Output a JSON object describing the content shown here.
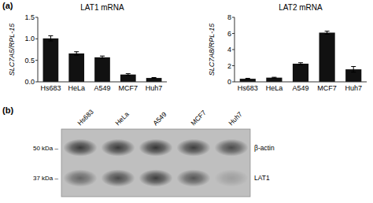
{
  "chart_data": [
    {
      "type": "bar",
      "title": "LAT1 mRNA",
      "annotations": [
        "(a)"
      ],
      "ylabel": "SLC7A5/RPL-15",
      "categories": [
        "Hs683",
        "HeLa",
        "A549",
        "MCF7",
        "Huh7"
      ],
      "values": [
        1.01,
        0.66,
        0.57,
        0.17,
        0.09
      ],
      "errors": [
        0.06,
        0.04,
        0.03,
        0.02,
        0.01
      ],
      "color": "#111111",
      "ylim": [
        0,
        1.5
      ],
      "yticks": [
        {
          "value": 0,
          "label": "0.0"
        },
        0.5,
        {
          "value": 1,
          "label": "1.0"
        },
        1.5
      ]
    },
    {
      "type": "bar",
      "title": "LAT2 mRNA",
      "ylabel": "SLC7A8/RPL-15",
      "categories": [
        "Hs683",
        "HeLa",
        "A549",
        "MCF7",
        "Huh7"
      ],
      "values": [
        0.38,
        0.52,
        2.25,
        6.1,
        1.55
      ],
      "errors": [
        0.05,
        0.05,
        0.12,
        0.18,
        0.35
      ],
      "color": "#111111",
      "ylim": [
        0,
        8
      ],
      "yticks": [
        0,
        2,
        4,
        6,
        8
      ]
    },
    {
      "type": "blot",
      "annotations": [
        "(b)"
      ],
      "categories": [
        "Hs683",
        "HeLa",
        "A549",
        "MCF7",
        "Huh7"
      ],
      "series": [
        {
          "name": "β-actin",
          "size_label": "50 kDa –",
          "values": [
            0.82,
            0.82,
            0.85,
            0.8,
            0.72
          ]
        },
        {
          "name": "LAT1",
          "size_label": "37 kDa –",
          "values": [
            0.55,
            0.72,
            0.8,
            0.65,
            0.2
          ]
        }
      ]
    }
  ]
}
